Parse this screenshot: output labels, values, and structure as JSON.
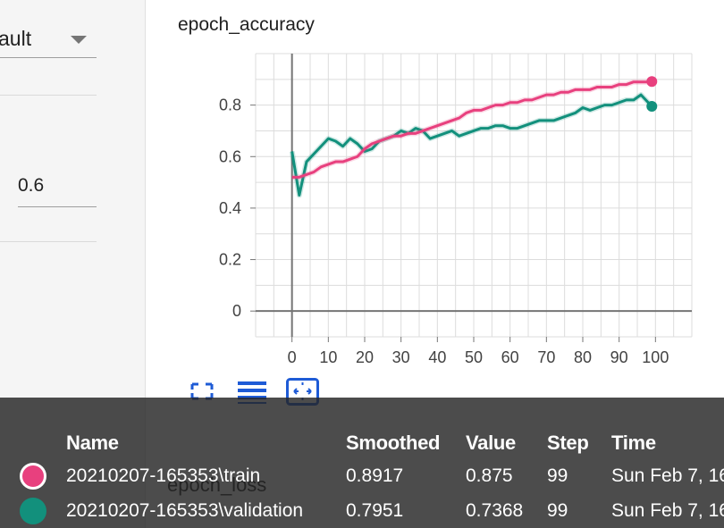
{
  "sidebar": {
    "smoothing_select_value": "ault",
    "smoothing_input_value": "0.6"
  },
  "chart_card": {
    "title": "epoch_accuracy"
  },
  "second_card": {
    "title": "epoch_loss"
  },
  "colors": {
    "train": "#e8407e",
    "validation": "#12907c",
    "axis": "#757575",
    "grid": "#dcdcdc",
    "accent_icon": "#1e5bd6"
  },
  "toolbar": {
    "icons": [
      "fullscreen-icon",
      "log-scale-icon",
      "fit-domain-icon"
    ]
  },
  "chart_data": {
    "type": "line",
    "title": "epoch_accuracy",
    "xlabel": "",
    "ylabel": "",
    "x_ticks": [
      0,
      10,
      20,
      30,
      40,
      50,
      60,
      70,
      80,
      90,
      100
    ],
    "y_ticks": [
      0,
      0.2,
      0.4,
      0.6,
      0.8
    ],
    "xlim": [
      -10,
      110
    ],
    "ylim": [
      -0.1,
      1.0
    ],
    "grid": true,
    "x": [
      0,
      2,
      4,
      6,
      8,
      10,
      12,
      14,
      16,
      18,
      20,
      22,
      24,
      26,
      28,
      30,
      32,
      34,
      36,
      38,
      40,
      42,
      44,
      46,
      48,
      50,
      52,
      54,
      56,
      58,
      60,
      62,
      64,
      66,
      68,
      70,
      72,
      74,
      76,
      78,
      80,
      82,
      84,
      86,
      88,
      90,
      92,
      94,
      96,
      98,
      99
    ],
    "series": [
      {
        "name": "20210207-165353\\train",
        "values": [
          0.52,
          0.52,
          0.53,
          0.54,
          0.56,
          0.57,
          0.58,
          0.58,
          0.59,
          0.6,
          0.63,
          0.65,
          0.66,
          0.67,
          0.68,
          0.68,
          0.69,
          0.69,
          0.7,
          0.71,
          0.72,
          0.73,
          0.74,
          0.75,
          0.77,
          0.78,
          0.78,
          0.79,
          0.8,
          0.8,
          0.81,
          0.81,
          0.82,
          0.82,
          0.83,
          0.84,
          0.84,
          0.85,
          0.85,
          0.86,
          0.86,
          0.86,
          0.87,
          0.87,
          0.87,
          0.88,
          0.88,
          0.89,
          0.89,
          0.89,
          0.8917
        ]
      },
      {
        "name": "20210207-165353\\validation",
        "values": [
          0.62,
          0.45,
          0.58,
          0.61,
          0.64,
          0.67,
          0.66,
          0.64,
          0.67,
          0.65,
          0.62,
          0.63,
          0.66,
          0.67,
          0.68,
          0.7,
          0.69,
          0.71,
          0.7,
          0.67,
          0.68,
          0.69,
          0.7,
          0.68,
          0.69,
          0.7,
          0.71,
          0.71,
          0.72,
          0.72,
          0.71,
          0.71,
          0.72,
          0.73,
          0.74,
          0.74,
          0.74,
          0.75,
          0.76,
          0.77,
          0.79,
          0.78,
          0.79,
          0.8,
          0.8,
          0.81,
          0.82,
          0.82,
          0.84,
          0.81,
          0.7951
        ]
      }
    ]
  },
  "tooltip": {
    "headers": {
      "name": "Name",
      "smoothed": "Smoothed",
      "value": "Value",
      "step": "Step",
      "time": "Time"
    },
    "rows": [
      {
        "name": "20210207-165353\\train",
        "smoothed": "0.8917",
        "value": "0.875",
        "step": "99",
        "time": "Sun Feb 7, 16",
        "color": "#e8407e"
      },
      {
        "name": "20210207-165353\\validation",
        "smoothed": "0.7951",
        "value": "0.7368",
        "step": "99",
        "time": "Sun Feb 7, 16",
        "color": "#12907c"
      }
    ]
  }
}
